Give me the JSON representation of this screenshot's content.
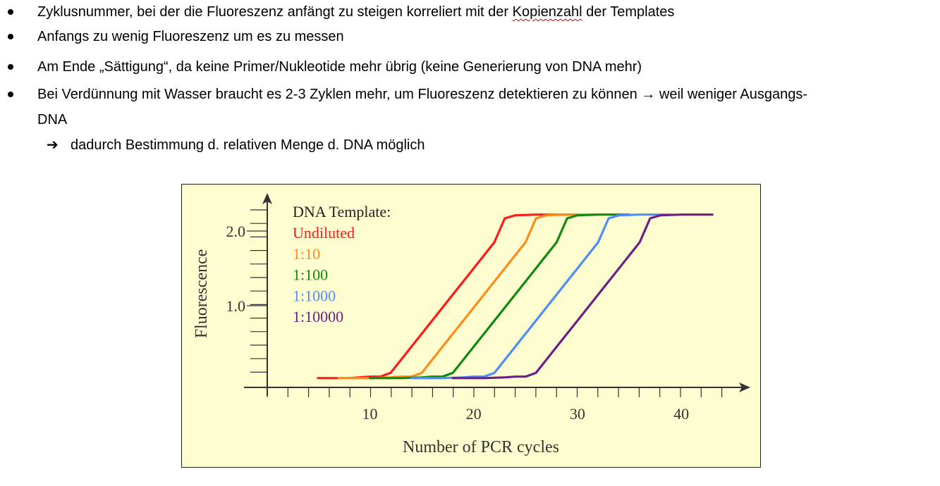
{
  "bullets": [
    {
      "pre": "Zyklusnummer, bei der die Fluoreszenz anfängt zu steigen korreliert mit der ",
      "marked": "Kopienzahl",
      "post": " der Templates"
    },
    {
      "text": "Anfangs zu wenig Fluoreszenz um es zu messen"
    },
    {
      "text": "Am Ende „Sättigung“, da keine Primer/Nukleotide mehr übrig (keine Generierung von DNA mehr)"
    },
    {
      "text": "Bei Verdünnung mit Wasser braucht es 2-3 Zyklen mehr, um Fluoreszenz detektieren zu können → weil weniger Ausgangs-",
      "cont": "DNA"
    }
  ],
  "sub_bullet": {
    "arrow": "➔",
    "text": "dadurch Bestimmung d. relativen Menge d. DNA möglich"
  },
  "chart_data": {
    "type": "line",
    "xlabel": "Number of PCR cycles",
    "ylabel": "Fluorescence",
    "x_ticks": [
      "10",
      "20",
      "30",
      "40"
    ],
    "y_ticks": [
      "1.0",
      "2.0"
    ],
    "legend_title": "DNA Template:",
    "legend_placement": "top-left",
    "xlim": [
      0,
      46
    ],
    "ylim": [
      0,
      2.45
    ],
    "series": [
      {
        "name": "Undiluted",
        "color": "#ff1a1a",
        "x": [
          5,
          8,
          10,
          11,
          12,
          14,
          16,
          18,
          20,
          22,
          23,
          24,
          26,
          28,
          30
        ],
        "y": [
          0.03,
          0.03,
          0.05,
          0.05,
          0.1,
          0.45,
          0.8,
          1.15,
          1.5,
          1.85,
          2.17,
          2.21,
          2.22,
          2.22,
          2.22
        ]
      },
      {
        "name": "1:10",
        "color": "#ff8c1a",
        "x": [
          7,
          10,
          12,
          13,
          14,
          15,
          17,
          19,
          21,
          23,
          25,
          26,
          27,
          29,
          32
        ],
        "y": [
          0.03,
          0.03,
          0.04,
          0.05,
          0.05,
          0.1,
          0.45,
          0.8,
          1.15,
          1.5,
          1.85,
          2.17,
          2.21,
          2.22,
          2.22
        ]
      },
      {
        "name": "1:100",
        "color": "#0f8a0f",
        "x": [
          10,
          13,
          15,
          16,
          17,
          18,
          20,
          22,
          24,
          26,
          28,
          29,
          30,
          32,
          35
        ],
        "y": [
          0.03,
          0.03,
          0.04,
          0.05,
          0.05,
          0.1,
          0.45,
          0.8,
          1.15,
          1.5,
          1.85,
          2.17,
          2.21,
          2.22,
          2.22
        ]
      },
      {
        "name": "1:1000",
        "color": "#4d8cff",
        "x": [
          14,
          17,
          19,
          20,
          21,
          22,
          24,
          26,
          28,
          30,
          32,
          33,
          34,
          36,
          39
        ],
        "y": [
          0.03,
          0.03,
          0.04,
          0.05,
          0.05,
          0.1,
          0.45,
          0.8,
          1.15,
          1.5,
          1.85,
          2.17,
          2.21,
          2.22,
          2.22
        ]
      },
      {
        "name": "1:10000",
        "color": "#6e1f87",
        "x": [
          18,
          21,
          23,
          24,
          25,
          26,
          28,
          30,
          32,
          34,
          36,
          37,
          38,
          40,
          43
        ],
        "y": [
          0.03,
          0.03,
          0.04,
          0.05,
          0.05,
          0.1,
          0.45,
          0.8,
          1.15,
          1.5,
          1.85,
          2.17,
          2.21,
          2.22,
          2.22
        ]
      }
    ]
  }
}
